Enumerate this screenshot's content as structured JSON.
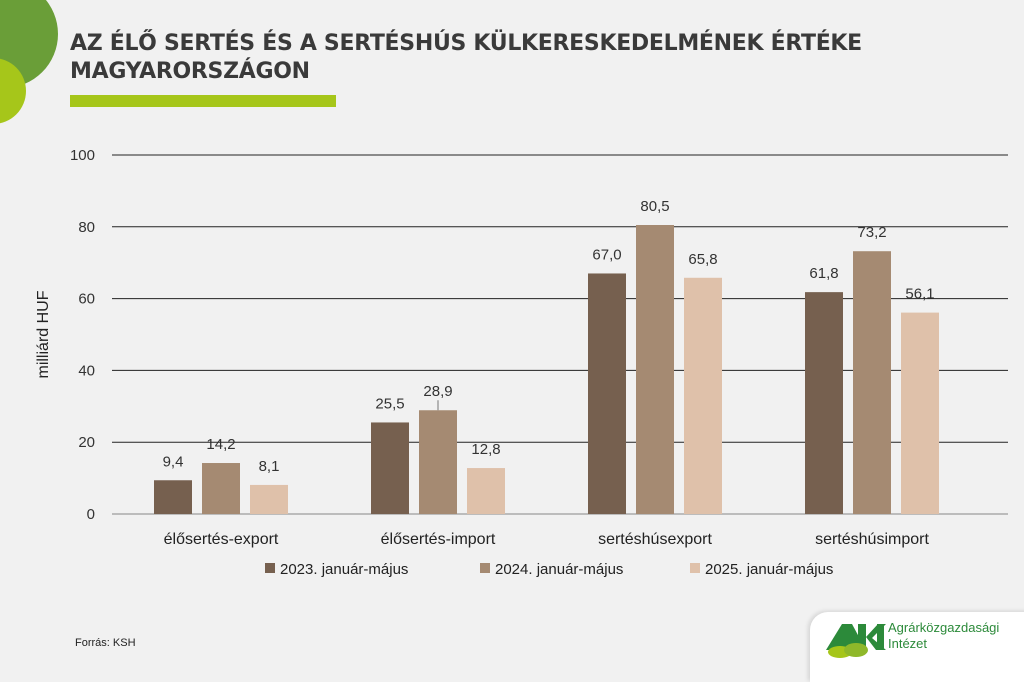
{
  "title_line1": "AZ ÉLŐ SERTÉS ÉS A SERTÉSHÚS KÜLKERESKEDELMÉNEK ÉRTÉKE",
  "title_line2": "MAGYARORSZÁGON",
  "source": "Forrás: KSH",
  "logo": {
    "abbr": "AKI",
    "line1": "Agrárközgazdasági",
    "line2": "Intézet"
  },
  "colors": {
    "accent_green": "#a6c61a",
    "dark_green": "#6a9e38"
  },
  "chart_data": {
    "type": "bar",
    "ylabel": "milliárd HUF",
    "ylim": [
      0,
      100
    ],
    "yticks": [
      0,
      20,
      40,
      60,
      80,
      100
    ],
    "grid": true,
    "legend_placement": "bottom",
    "categories": [
      "élősertés-export",
      "élősertés-import",
      "sertéshúsexport",
      "sertéshúsimport"
    ],
    "series": [
      {
        "name": "2023. január-május",
        "color": "#76604f",
        "values": [
          9.4,
          25.5,
          67.0,
          61.8
        ],
        "labels": [
          "9,4",
          "25,5",
          "67,0",
          "61,8"
        ]
      },
      {
        "name": "2024. január-május",
        "color": "#a58a72",
        "values": [
          14.2,
          28.9,
          80.5,
          73.2
        ],
        "labels": [
          "14,2",
          "28,9",
          "80,5",
          "73,2"
        ]
      },
      {
        "name": "2025. január-május",
        "color": "#dfc1aa",
        "values": [
          8.1,
          12.8,
          65.8,
          56.1
        ],
        "labels": [
          "8,1",
          "12,8",
          "65,8",
          "56,1"
        ]
      }
    ]
  }
}
